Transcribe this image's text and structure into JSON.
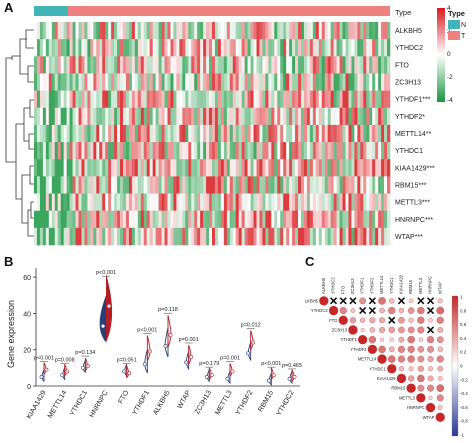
{
  "panels": {
    "a": "A",
    "b": "B",
    "c": "C"
  },
  "heatmap": {
    "type_label": "Type",
    "legend_type_title": "Type",
    "legend_type_items": [
      {
        "label": "N",
        "color": "#40b4b6"
      },
      {
        "label": "T",
        "color": "#ef8080"
      }
    ],
    "scale_ticks": [
      "4",
      "2",
      "0",
      "-2",
      "-4"
    ],
    "colors": {
      "high": "#d7191c",
      "mid": "#ffffff",
      "low": "#1a9641"
    },
    "normal_fraction": 0.11,
    "genes": [
      "ALKBH5",
      "YTHDC2",
      "FTO",
      "ZC3H13",
      "YTHDF1***",
      "YTHDF2*",
      "METTL14**",
      "YTHDC1",
      "KIAA1429***",
      "RBM15***",
      "METTL3***",
      "HNRNPC***",
      "WTAP***"
    ]
  },
  "violin": {
    "ylabel": "Gene expression",
    "categories": [
      "KIAA1429",
      "METTL14",
      "YTHDC1",
      "HNRNPC",
      "FTO",
      "YTHDF1",
      "ALKBH5",
      "WTAP",
      "ZC3H13",
      "METTL3",
      "YTHDF2",
      "RBM15",
      "YTHDC2"
    ],
    "pvalues": [
      "p<0.001",
      "p=0.008",
      "p=0.134",
      "p<0.001",
      "p=0.051",
      "p<0.001",
      "p=0.118",
      "p=0.001",
      "p=0.179",
      "p=0.001",
      "p=0.012",
      "p<0.001",
      "p=0.465"
    ],
    "colors": {
      "normal": "#2a3f7a",
      "tumor": "#b01e26"
    }
  },
  "chart_data": [
    {
      "type": "heatmap",
      "title": "",
      "rows": [
        "ALKBH5",
        "YTHDC2",
        "FTO",
        "ZC3H13",
        "YTHDF1***",
        "YTHDF2*",
        "METTL14**",
        "YTHDC1",
        "KIAA1429***",
        "RBM15***",
        "METTL3***",
        "HNRNPC***",
        "WTAP***"
      ],
      "annotation": {
        "name": "Type",
        "groups": [
          "N",
          "T"
        ]
      },
      "color_scale": {
        "min": -4,
        "max": 4
      }
    },
    {
      "type": "violin",
      "title": "",
      "ylabel": "Gene expression",
      "categories": [
        "KIAA1429",
        "METTL14",
        "YTHDC1",
        "HNRNPC",
        "FTO",
        "YTHDF1",
        "ALKBH5",
        "WTAP",
        "ZC3H13",
        "METTL3",
        "YTHDF2",
        "RBM15",
        "YTHDC2"
      ],
      "series": [
        {
          "name": "N",
          "medians": [
            5,
            6,
            10,
            33,
            8,
            12,
            22,
            13,
            5,
            4,
            18,
            3,
            4
          ]
        },
        {
          "name": "T",
          "medians": [
            9,
            8,
            11,
            44,
            7,
            19,
            28,
            16,
            6,
            8,
            24,
            6,
            5
          ]
        }
      ],
      "ylim": [
        0,
        65
      ]
    },
    {
      "type": "heatmap",
      "title": "",
      "rows": [
        "ALKBH5",
        "YTHDC2",
        "FTO",
        "ZC3H13",
        "YTHDF1",
        "YTHDF2",
        "METTL14",
        "YTHDC1",
        "KIAA1429",
        "RBM15",
        "METTL3",
        "HNRNPC",
        "WTAP"
      ],
      "columns": [
        "ALKBH5",
        "YTHDC2",
        "FTO",
        "ZC3H13",
        "YTHDF1",
        "YTHDF2",
        "METTL14",
        "YTHDC1",
        "KIAA1429",
        "RBM15",
        "METTL3",
        "HNRNPC",
        "WTAP"
      ],
      "color_scale": {
        "min": -1,
        "max": 1,
        "ticks": [
          "1",
          "0.8",
          "0.6",
          "0.4",
          "0.2",
          "0",
          "-0.2",
          "-0.4",
          "-0.6",
          "-0.8",
          "-1"
        ]
      },
      "crossed_cells": [
        [
          0,
          1
        ],
        [
          0,
          2
        ],
        [
          0,
          3
        ],
        [
          0,
          5
        ],
        [
          0,
          8
        ],
        [
          0,
          10
        ],
        [
          0,
          11
        ],
        [
          1,
          4
        ],
        [
          1,
          5
        ],
        [
          1,
          11
        ],
        [
          2,
          7
        ],
        [
          3,
          11
        ]
      ]
    }
  ]
}
